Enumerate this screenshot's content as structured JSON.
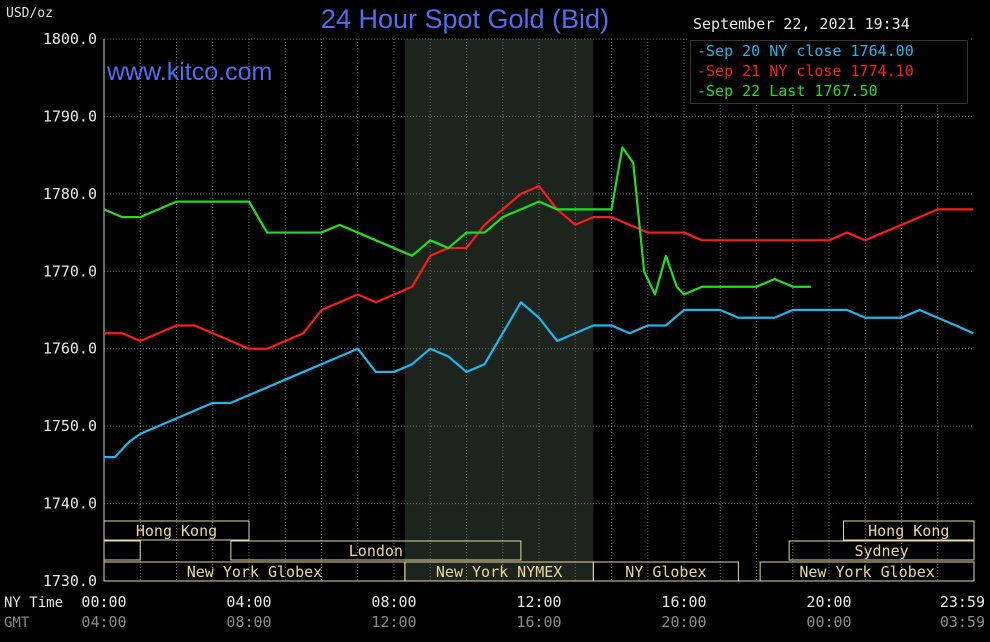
{
  "header": {
    "unit": "USD/oz",
    "title": "24 Hour Spot Gold (Bid)",
    "site": "www.kitco.com",
    "date": "September 22, 2021 19:34"
  },
  "legend": [
    {
      "text": "Sep 20 NY close 1764.00",
      "color": "#19b8f0"
    },
    {
      "text": "Sep 21 NY close 1774.10",
      "color": "#ff1a1a"
    },
    {
      "text": "Sep 22 Last 1767.50",
      "color": "#1ee01e"
    }
  ],
  "colors": {
    "background": "#000000",
    "grid": "#6a6a6a",
    "session_box": "#e8d8a0",
    "shaded": "#1d241d"
  },
  "sessions": [
    {
      "row": 0,
      "name": "Hong Kong",
      "start": 0,
      "end": 4
    },
    {
      "row": 0,
      "name": "Hong Kong",
      "start": 20.4,
      "end": 24
    },
    {
      "row": 1,
      "name": "",
      "start": 0,
      "end": 1
    },
    {
      "row": 1,
      "name": "London",
      "start": 3.5,
      "end": 11.5
    },
    {
      "row": 1,
      "name": "Sydney",
      "start": 18.9,
      "end": 24
    },
    {
      "row": 2,
      "name": "New York Globex",
      "start": 0,
      "end": 8.3
    },
    {
      "row": 2,
      "name": "New York NYMEX",
      "start": 8.3,
      "end": 13.5
    },
    {
      "row": 2,
      "name": "NY Globex",
      "start": 13.5,
      "end": 17.5
    },
    {
      "row": 2,
      "name": "New York Globex",
      "start": 18.1,
      "end": 24
    }
  ],
  "chart_data": {
    "type": "line",
    "ylabel": "USD/oz",
    "ylim": [
      1730,
      1800
    ],
    "xlim": [
      0,
      24
    ],
    "yticks": [
      "1800.0",
      "1790.0",
      "1780.0",
      "1770.0",
      "1760.0",
      "1750.0",
      "1740.0",
      "1730.0"
    ],
    "ytick_values": [
      1800,
      1790,
      1780,
      1770,
      1760,
      1750,
      1740,
      1730
    ],
    "x_axis_title_ny": "NY Time",
    "x_axis_title_gmt": "GMT",
    "xtick_values": [
      0,
      4,
      8,
      12,
      16,
      20,
      24
    ],
    "xticks_ny": [
      "00:00",
      "04:00",
      "08:00",
      "12:00",
      "16:00",
      "20:00",
      "23:59"
    ],
    "xticks_gmt": [
      "04:00",
      "08:00",
      "12:00",
      "16:00",
      "20:00",
      "00:00",
      "03:59"
    ],
    "shaded_region": [
      8.3,
      13.5
    ],
    "grid": true,
    "series": [
      {
        "name": "Sep 20",
        "color": "#19b8f0",
        "x": [
          0,
          0.3,
          0.7,
          1,
          1.5,
          2,
          2.5,
          3,
          3.5,
          4,
          4.5,
          5,
          5.5,
          6,
          6.5,
          7,
          7.5,
          8,
          8.5,
          9,
          9.5,
          10,
          10.5,
          11,
          11.5,
          12,
          12.5,
          13,
          13.5,
          14,
          14.5,
          15,
          15.5,
          16,
          16.5,
          17,
          17.5,
          18,
          18.5,
          19,
          19.5,
          20,
          20.5,
          21,
          21.5,
          22,
          22.5,
          23,
          23.5,
          23.98
        ],
        "y": [
          1746,
          1746,
          1748,
          1749,
          1750,
          1751,
          1752,
          1753,
          1753,
          1754,
          1755,
          1756,
          1757,
          1758,
          1759,
          1760,
          1757,
          1757,
          1758,
          1760,
          1759,
          1757,
          1758,
          1762,
          1766,
          1764,
          1761,
          1762,
          1763,
          1763,
          1762,
          1763,
          1763,
          1765,
          1765,
          1765,
          1764,
          1764,
          1764,
          1765,
          1765,
          1765,
          1765,
          1764,
          1764,
          1764,
          1765,
          1764,
          1763,
          1762
        ]
      },
      {
        "name": "Sep 21",
        "color": "#ff1a1a",
        "x": [
          0,
          0.5,
          1,
          1.5,
          2,
          2.5,
          3,
          3.5,
          4,
          4.5,
          5,
          5.5,
          6,
          6.5,
          7,
          7.5,
          8,
          8.5,
          9,
          9.5,
          10,
          10.5,
          11,
          11.5,
          12,
          12.5,
          13,
          13.5,
          14,
          14.5,
          15,
          15.5,
          16,
          16.5,
          17,
          17.5,
          18,
          18.5,
          19,
          19.5,
          20,
          20.5,
          21,
          21.5,
          22,
          22.5,
          23,
          23.5,
          23.98
        ],
        "y": [
          1762,
          1762,
          1761,
          1762,
          1763,
          1763,
          1762,
          1761,
          1760,
          1760,
          1761,
          1762,
          1765,
          1766,
          1767,
          1766,
          1767,
          1768,
          1772,
          1773,
          1773,
          1776,
          1778,
          1780,
          1781,
          1778,
          1776,
          1777,
          1777,
          1776,
          1775,
          1775,
          1775,
          1774,
          1774,
          1774,
          1774,
          1774,
          1774,
          1774,
          1774,
          1775,
          1774,
          1775,
          1776,
          1777,
          1778,
          1778,
          1778
        ]
      },
      {
        "name": "Sep 22",
        "color": "#1ee01e",
        "x": [
          0,
          0.5,
          1,
          1.5,
          2,
          2.5,
          3,
          3.5,
          4,
          4.5,
          5,
          5.5,
          6,
          6.5,
          7,
          7.5,
          8,
          8.5,
          9,
          9.5,
          10,
          10.5,
          11,
          11.5,
          12,
          12.5,
          13,
          13.5,
          14,
          14.3,
          14.6,
          14.9,
          15.2,
          15.5,
          15.8,
          16,
          16.5,
          17,
          17.5,
          18,
          18.5,
          19,
          19.5
        ],
        "y": [
          1778,
          1777,
          1777,
          1778,
          1779,
          1779,
          1779,
          1779,
          1779,
          1775,
          1775,
          1775,
          1775,
          1776,
          1775,
          1774,
          1773,
          1772,
          1774,
          1773,
          1775,
          1775,
          1777,
          1778,
          1779,
          1778,
          1778,
          1778,
          1778,
          1786,
          1784,
          1770,
          1767,
          1772,
          1768,
          1767,
          1768,
          1768,
          1768,
          1768,
          1769,
          1768,
          1768
        ]
      }
    ]
  }
}
